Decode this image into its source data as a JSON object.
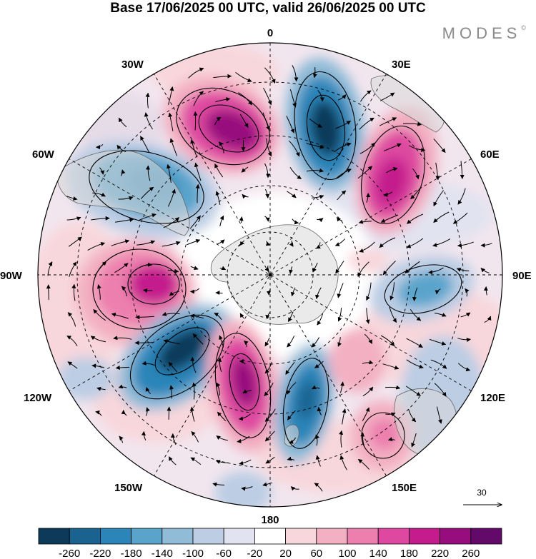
{
  "header": {
    "title": "Base 17/06/2025 00 UTC, valid 26/06/2025 00 UTC",
    "brand": "MODES",
    "brand_mark": "©"
  },
  "map": {
    "projection": "south-polar-stereographic",
    "longitude_labels": {
      "top": "0",
      "bottom": "180",
      "left": "90W",
      "right": "90E",
      "upper_left_1": "30W",
      "upper_left_2": "60W",
      "upper_right_1": "30E",
      "upper_right_2": "60E",
      "lower_left_1": "120W",
      "lower_left_2": "150W",
      "lower_right_1": "120E",
      "lower_right_2": "150E"
    },
    "reference_vector": {
      "label": "30"
    },
    "anomaly_centres": [
      {
        "sign": "positive",
        "value": 260,
        "near": "20W"
      },
      {
        "sign": "negative",
        "value": -260,
        "near": "20E"
      },
      {
        "sign": "positive",
        "value": 220,
        "near": "50E"
      },
      {
        "sign": "negative",
        "value": -140,
        "near": "60W"
      },
      {
        "sign": "positive",
        "value": 220,
        "near": "100W"
      },
      {
        "sign": "negative",
        "value": -260,
        "near": "135W"
      },
      {
        "sign": "positive",
        "value": 260,
        "near": "165W"
      },
      {
        "sign": "negative",
        "value": -220,
        "near": "160E"
      },
      {
        "sign": "negative",
        "value": -140,
        "near": "95E"
      },
      {
        "sign": "positive",
        "value": 100,
        "near": "140E"
      }
    ]
  },
  "colorbar": {
    "labels": [
      "-260",
      "-220",
      "-180",
      "-140",
      "-100",
      "-60",
      "-20",
      "20",
      "60",
      "100",
      "140",
      "180",
      "220",
      "260"
    ],
    "colors": [
      "#0e3a5a",
      "#1a6391",
      "#2b85b9",
      "#5aa4cc",
      "#91bcd8",
      "#bccde4",
      "#e2e3f0",
      "#ffffff",
      "#f8d7dc",
      "#f3b0c2",
      "#ec7fae",
      "#de48a0",
      "#c41b8d",
      "#980d7e",
      "#62096a"
    ]
  }
}
